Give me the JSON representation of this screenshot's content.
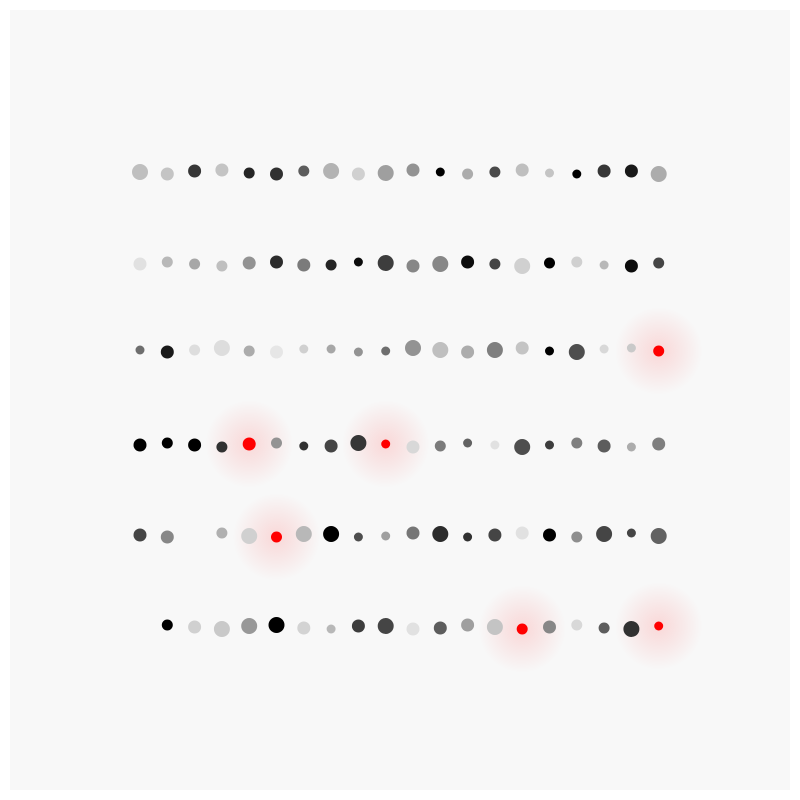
{
  "colors": {
    "background": "#f8f8f8",
    "frame": "#ffffff",
    "highlight": "#ff0000",
    "highlight_glow": "#ff0000"
  },
  "rows": [
    {
      "dots": [
        {
          "tone": 0.22,
          "size": "lg"
        },
        {
          "tone": 0.2,
          "size": "md"
        },
        {
          "tone": 0.78,
          "size": "md"
        },
        {
          "tone": 0.2,
          "size": "md"
        },
        {
          "tone": 0.85,
          "size": "sm"
        },
        {
          "tone": 0.8,
          "size": "md"
        },
        {
          "tone": 0.62,
          "size": "sm"
        },
        {
          "tone": 0.27,
          "size": "lg"
        },
        {
          "tone": 0.15,
          "size": "md"
        },
        {
          "tone": 0.35,
          "size": "lg"
        },
        {
          "tone": 0.4,
          "size": "md"
        },
        {
          "tone": 1.0,
          "size": "xs"
        },
        {
          "tone": 0.3,
          "size": "sm"
        },
        {
          "tone": 0.7,
          "size": "sm"
        },
        {
          "tone": 0.22,
          "size": "md"
        },
        {
          "tone": 0.2,
          "size": "xs"
        },
        {
          "tone": 1.0,
          "size": "xs"
        },
        {
          "tone": 0.78,
          "size": "md"
        },
        {
          "tone": 0.9,
          "size": "md"
        },
        {
          "tone": 0.3,
          "size": "lg"
        }
      ]
    },
    {
      "dots": [
        {
          "tone": 0.08,
          "size": "md"
        },
        {
          "tone": 0.25,
          "size": "sm"
        },
        {
          "tone": 0.32,
          "size": "sm"
        },
        {
          "tone": 0.22,
          "size": "sm"
        },
        {
          "tone": 0.4,
          "size": "md"
        },
        {
          "tone": 0.82,
          "size": "md"
        },
        {
          "tone": 0.5,
          "size": "md"
        },
        {
          "tone": 0.85,
          "size": "sm"
        },
        {
          "tone": 0.95,
          "size": "xs"
        },
        {
          "tone": 0.75,
          "size": "lg"
        },
        {
          "tone": 0.45,
          "size": "md"
        },
        {
          "tone": 0.45,
          "size": "lg"
        },
        {
          "tone": 0.95,
          "size": "md"
        },
        {
          "tone": 0.72,
          "size": "sm"
        },
        {
          "tone": 0.15,
          "size": "lg"
        },
        {
          "tone": 1.0,
          "size": "sm"
        },
        {
          "tone": 0.15,
          "size": "sm"
        },
        {
          "tone": 0.25,
          "size": "xs"
        },
        {
          "tone": 0.95,
          "size": "md"
        },
        {
          "tone": 0.72,
          "size": "sm"
        }
      ]
    },
    {
      "dots": [
        {
          "tone": 0.55,
          "size": "xs"
        },
        {
          "tone": 0.9,
          "size": "md"
        },
        {
          "tone": 0.1,
          "size": "sm"
        },
        {
          "tone": 0.1,
          "size": "lg"
        },
        {
          "tone": 0.3,
          "size": "sm"
        },
        {
          "tone": 0.06,
          "size": "md"
        },
        {
          "tone": 0.15,
          "size": "xs"
        },
        {
          "tone": 0.32,
          "size": "xs"
        },
        {
          "tone": 0.4,
          "size": "xs"
        },
        {
          "tone": 0.55,
          "size": "xs"
        },
        {
          "tone": 0.4,
          "size": "lg"
        },
        {
          "tone": 0.22,
          "size": "lg"
        },
        {
          "tone": 0.3,
          "size": "md"
        },
        {
          "tone": 0.48,
          "size": "lg"
        },
        {
          "tone": 0.2,
          "size": "md"
        },
        {
          "tone": 1.0,
          "size": "xs"
        },
        {
          "tone": 0.68,
          "size": "lg"
        },
        {
          "tone": 0.12,
          "size": "xs"
        },
        {
          "tone": 0.18,
          "size": "xs"
        },
        {
          "tone": 0.0,
          "size": "sm",
          "highlight": true
        }
      ]
    },
    {
      "dots": [
        {
          "tone": 1.0,
          "size": "md"
        },
        {
          "tone": 1.0,
          "size": "sm"
        },
        {
          "tone": 1.0,
          "size": "md"
        },
        {
          "tone": 0.8,
          "size": "sm"
        },
        {
          "tone": 0.0,
          "size": "md",
          "highlight": true
        },
        {
          "tone": 0.4,
          "size": "sm"
        },
        {
          "tone": 0.8,
          "size": "xs"
        },
        {
          "tone": 0.72,
          "size": "md"
        },
        {
          "tone": 0.78,
          "size": "lg"
        },
        {
          "tone": 0.0,
          "size": "xs",
          "highlight": true
        },
        {
          "tone": 0.12,
          "size": "md"
        },
        {
          "tone": 0.5,
          "size": "sm"
        },
        {
          "tone": 0.6,
          "size": "xs"
        },
        {
          "tone": 0.08,
          "size": "xs"
        },
        {
          "tone": 0.68,
          "size": "lg"
        },
        {
          "tone": 0.75,
          "size": "xs"
        },
        {
          "tone": 0.48,
          "size": "sm"
        },
        {
          "tone": 0.62,
          "size": "md"
        },
        {
          "tone": 0.3,
          "size": "xs"
        },
        {
          "tone": 0.48,
          "size": "md"
        }
      ]
    },
    {
      "dots": [
        {
          "tone": 0.72,
          "size": "md"
        },
        {
          "tone": 0.45,
          "size": "md"
        },
        {
          "tone": -1,
          "size": "md"
        },
        {
          "tone": 0.28,
          "size": "sm"
        },
        {
          "tone": 0.15,
          "size": "lg"
        },
        {
          "tone": 0.0,
          "size": "sm",
          "highlight": true
        },
        {
          "tone": 0.25,
          "size": "lg"
        },
        {
          "tone": 1.0,
          "size": "lg"
        },
        {
          "tone": 0.68,
          "size": "xs"
        },
        {
          "tone": 0.35,
          "size": "xs"
        },
        {
          "tone": 0.52,
          "size": "md"
        },
        {
          "tone": 0.82,
          "size": "lg"
        },
        {
          "tone": 0.8,
          "size": "xs"
        },
        {
          "tone": 0.72,
          "size": "md"
        },
        {
          "tone": 0.08,
          "size": "md"
        },
        {
          "tone": 1.0,
          "size": "md"
        },
        {
          "tone": 0.42,
          "size": "sm"
        },
        {
          "tone": 0.72,
          "size": "lg"
        },
        {
          "tone": 0.72,
          "size": "xs"
        },
        {
          "tone": 0.6,
          "size": "lg"
        }
      ]
    },
    {
      "dots": [
        {
          "tone": -1,
          "size": "md"
        },
        {
          "tone": 1.0,
          "size": "sm"
        },
        {
          "tone": 0.15,
          "size": "md"
        },
        {
          "tone": 0.18,
          "size": "lg"
        },
        {
          "tone": 0.38,
          "size": "lg"
        },
        {
          "tone": 1.0,
          "size": "lg"
        },
        {
          "tone": 0.14,
          "size": "md"
        },
        {
          "tone": 0.25,
          "size": "xs"
        },
        {
          "tone": 0.75,
          "size": "md"
        },
        {
          "tone": 0.72,
          "size": "lg"
        },
        {
          "tone": 0.08,
          "size": "md"
        },
        {
          "tone": 0.62,
          "size": "md"
        },
        {
          "tone": 0.35,
          "size": "md"
        },
        {
          "tone": 0.2,
          "size": "lg"
        },
        {
          "tone": 0.0,
          "size": "sm",
          "highlight": true
        },
        {
          "tone": 0.45,
          "size": "md"
        },
        {
          "tone": 0.12,
          "size": "sm"
        },
        {
          "tone": 0.62,
          "size": "sm"
        },
        {
          "tone": 0.8,
          "size": "lg"
        },
        {
          "tone": 0.0,
          "size": "xs",
          "highlight": true
        }
      ]
    }
  ]
}
